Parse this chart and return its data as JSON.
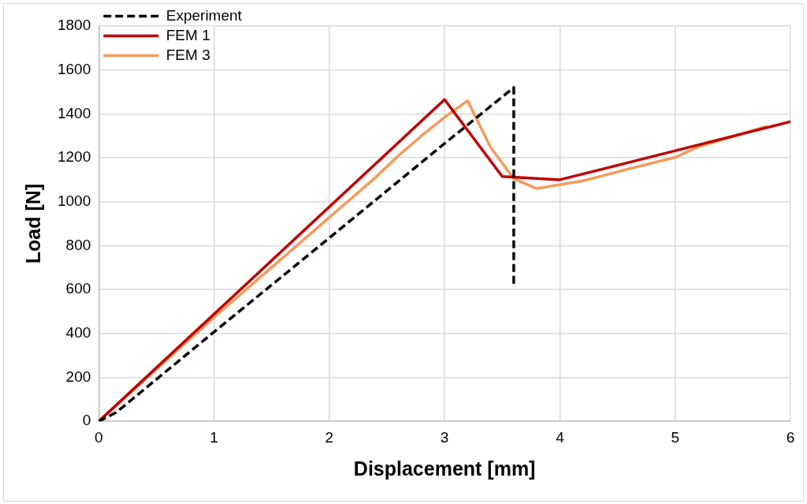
{
  "chart_data": {
    "type": "line",
    "xlabel": "Displacement [mm]",
    "ylabel": "Load [N]",
    "xlim": [
      0,
      6
    ],
    "xticks": [
      0,
      1,
      2,
      3,
      4,
      5,
      6
    ],
    "ylim": [
      0,
      1800
    ],
    "yticks": [
      0,
      200,
      400,
      600,
      800,
      1000,
      1200,
      1400,
      1600,
      1800
    ],
    "grid": true,
    "legend": "top left",
    "marker": "none",
    "series": [
      {
        "name": "Experiment",
        "color": "#000000",
        "line_style": "dashed",
        "x": [
          0,
          0.15,
          1,
          2,
          3,
          3.6,
          3.6
        ],
        "values": [
          0,
          40,
          407,
          835,
          1265,
          1520,
          612
        ]
      },
      {
        "name": "FEM 1",
        "color": "#c00000",
        "line_style": "solid",
        "x": [
          0,
          3,
          3.5,
          4,
          5,
          6
        ],
        "values": [
          0,
          1465,
          1115,
          1100,
          1232,
          1365
        ]
      },
      {
        "name": "FEM 3",
        "color": "#f79a58",
        "line_style": "solid",
        "x": [
          0,
          1,
          2.4,
          2.6,
          2.8,
          3,
          3.2,
          3.4,
          3.6,
          3.8,
          4.2,
          4.6,
          5,
          5.2,
          5.8
        ],
        "values": [
          0,
          474,
          1110,
          1210,
          1300,
          1385,
          1460,
          1247,
          1105,
          1060,
          1095,
          1150,
          1202,
          1250,
          1344
        ]
      }
    ]
  }
}
